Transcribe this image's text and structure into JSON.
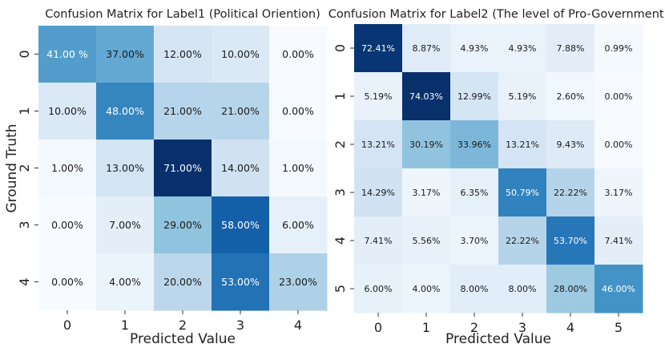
{
  "chart_data": [
    {
      "type": "heatmap",
      "title": "Confusion Matrix for Label1 (Political Oriention)",
      "xlabel": "Predicted Value",
      "ylabel": "Ground Truth",
      "x_ticks": [
        "0",
        "1",
        "2",
        "3",
        "4"
      ],
      "y_ticks": [
        "0",
        "1",
        "2",
        "3",
        "4"
      ],
      "cell_labels": [
        [
          "41.00 %",
          "37.00%",
          "12.00%",
          "10.00%",
          "0.00%"
        ],
        [
          "10.00%",
          "48.00%",
          "21.00%",
          "21.00%",
          "0.00%"
        ],
        [
          "1.00%",
          "13.00%",
          "71.00%",
          "14.00%",
          "1.00%"
        ],
        [
          "0.00%",
          "7.00%",
          "29.00%",
          "58.00%",
          "6.00%"
        ],
        [
          "0.00%",
          "4.00%",
          "20.00%",
          "53.00%",
          "23.00%"
        ]
      ],
      "values": [
        [
          41.0,
          37.0,
          12.0,
          10.0,
          0.0
        ],
        [
          10.0,
          48.0,
          21.0,
          21.0,
          0.0
        ],
        [
          1.0,
          13.0,
          71.0,
          14.0,
          1.0
        ],
        [
          0.0,
          7.0,
          29.0,
          58.0,
          6.0
        ],
        [
          0.0,
          4.0,
          20.0,
          53.0,
          23.0
        ]
      ],
      "colormap": "Blues",
      "grid": false
    },
    {
      "type": "heatmap",
      "title": "Confusion Matrix for Label2 (The level of Pro-Government)",
      "xlabel": "Predicted Value",
      "ylabel": "",
      "x_ticks": [
        "0",
        "1",
        "2",
        "3",
        "4",
        "5"
      ],
      "y_ticks": [
        "0",
        "1",
        "2",
        "3",
        "4",
        "5"
      ],
      "cell_labels": [
        [
          "72.41%",
          "8.87%",
          "4.93%",
          "4.93%",
          "7.88%",
          "0.99%"
        ],
        [
          "5.19%",
          "74.03%",
          "12.99%",
          "5.19%",
          "2.60%",
          "0.00%"
        ],
        [
          "13.21%",
          "30.19%",
          "33.96%",
          "13.21%",
          "9.43%",
          "0.00%"
        ],
        [
          "14.29%",
          "3.17%",
          "6.35%",
          "50.79%",
          "22.22%",
          "3.17%"
        ],
        [
          "7.41%",
          "5.56%",
          "3.70%",
          "22.22%",
          "53.70%",
          "7.41%"
        ],
        [
          "6.00%",
          "4.00%",
          "8.00%",
          "8.00%",
          "28.00%",
          "46.00%"
        ]
      ],
      "values": [
        [
          72.41,
          8.87,
          4.93,
          4.93,
          7.88,
          0.99
        ],
        [
          5.19,
          74.03,
          12.99,
          5.19,
          2.6,
          0.0
        ],
        [
          13.21,
          30.19,
          33.96,
          13.21,
          9.43,
          0.0
        ],
        [
          14.29,
          3.17,
          6.35,
          50.79,
          22.22,
          3.17
        ],
        [
          7.41,
          5.56,
          3.7,
          22.22,
          53.7,
          7.41
        ],
        [
          6.0,
          4.0,
          8.0,
          8.0,
          28.0,
          46.0
        ]
      ],
      "colormap": "Blues",
      "grid": false
    }
  ]
}
